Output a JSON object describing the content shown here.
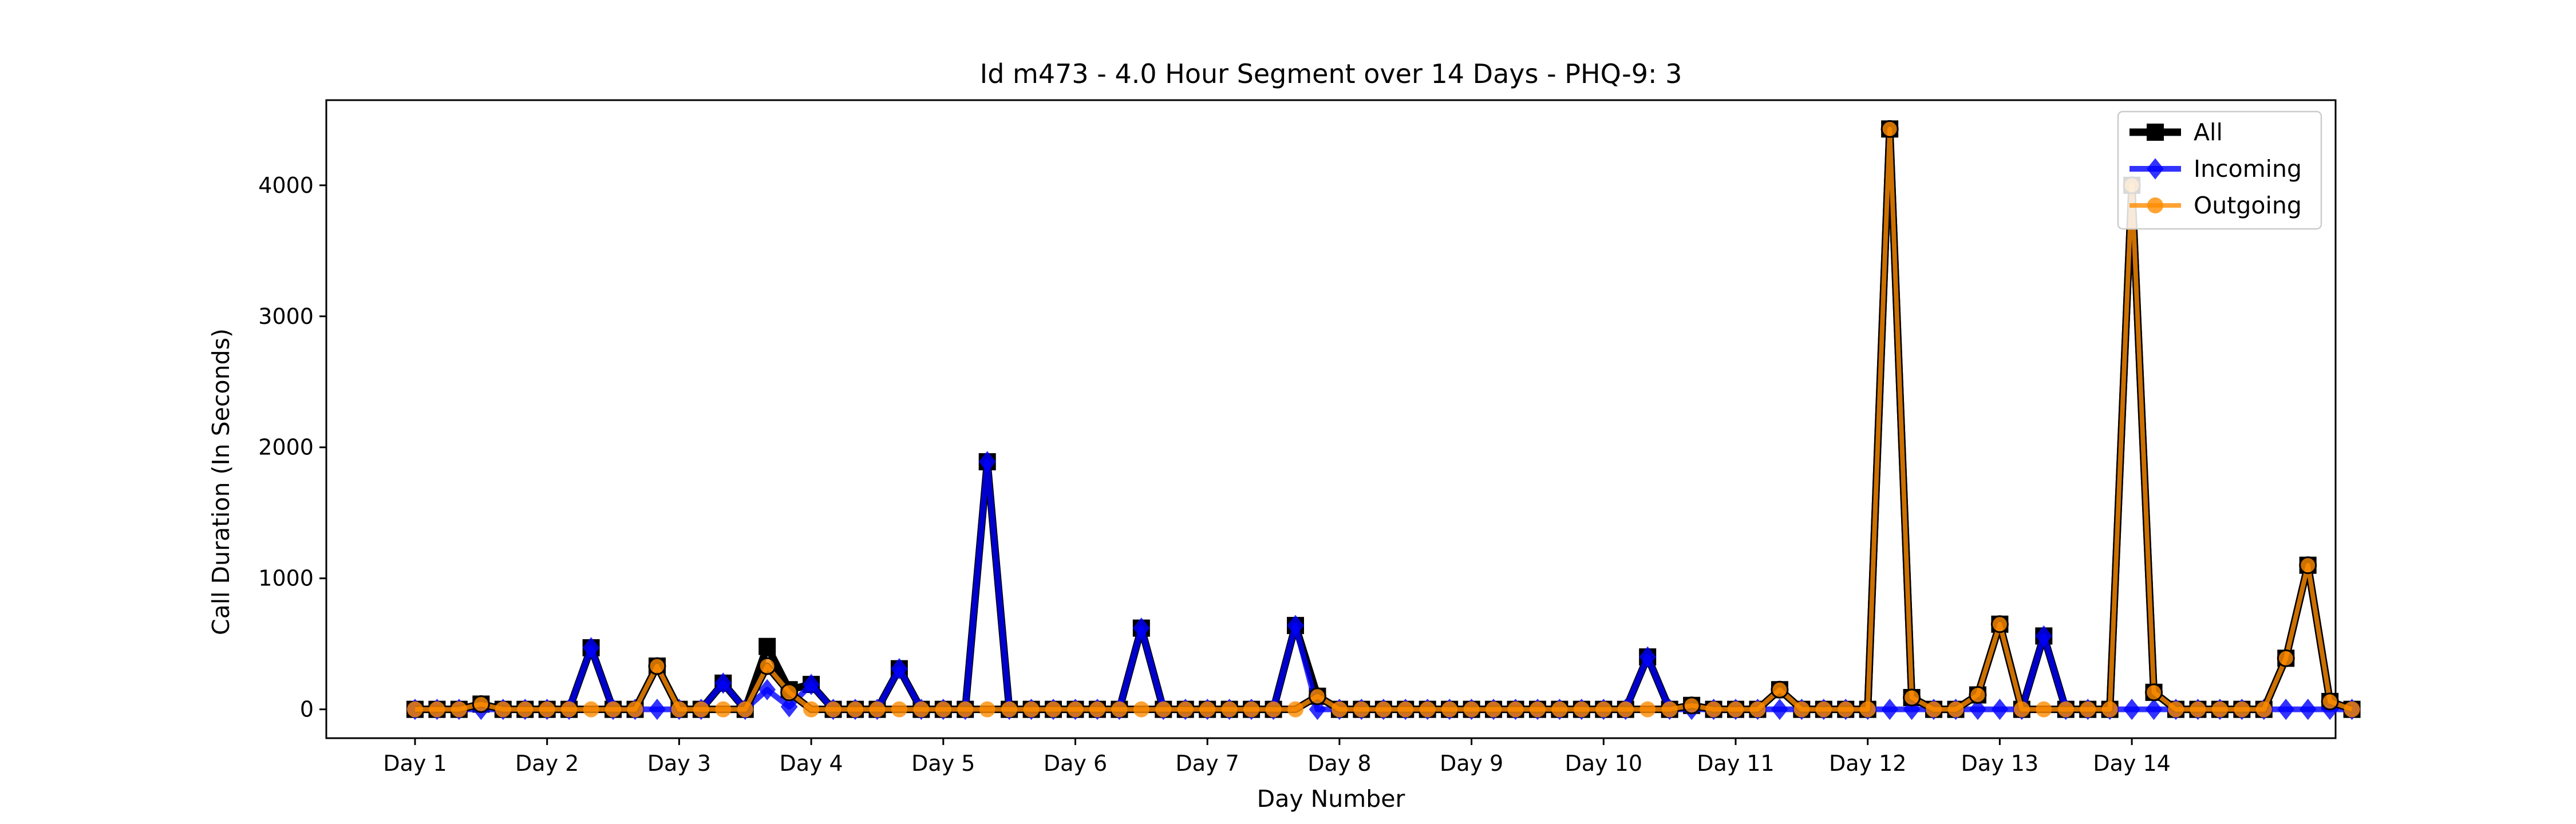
{
  "chart_data": {
    "type": "line",
    "title": "Id m473 - 4.0 Hour Segment over 14 Days - PHQ-9: 3",
    "xlabel": "Day Number",
    "ylabel": "Call Duration (In Seconds)",
    "xtick_labels": [
      "Day 1",
      "Day 2",
      "Day 3",
      "Day 4",
      "Day 5",
      "Day 6",
      "Day 7",
      "Day 8",
      "Day 9",
      "Day 10",
      "Day 11",
      "Day 12",
      "Day 13",
      "Day 14"
    ],
    "yticks": [
      0,
      1000,
      2000,
      3000,
      4000
    ],
    "ylim": [
      -220,
      4650
    ],
    "legend_position": "top-right",
    "segments_per_day": 6,
    "series": [
      {
        "name": "All",
        "color": "#000000",
        "marker": "square",
        "values": [
          0,
          0,
          0,
          40,
          0,
          0,
          0,
          0,
          470,
          0,
          0,
          330,
          0,
          0,
          200,
          0,
          480,
          150,
          190,
          0,
          0,
          0,
          310,
          0,
          0,
          0,
          1890,
          0,
          0,
          0,
          0,
          0,
          0,
          620,
          0,
          0,
          0,
          0,
          0,
          0,
          640,
          100,
          0,
          0,
          0,
          0,
          0,
          0,
          0,
          0,
          0,
          0,
          0,
          0,
          0,
          0,
          400,
          0,
          30,
          0,
          0,
          0,
          150,
          0,
          0,
          0,
          0,
          4430,
          90,
          0,
          0,
          110,
          650,
          0,
          560,
          0,
          0,
          0,
          4000,
          130,
          0,
          0,
          0,
          0,
          0,
          390,
          1100,
          60,
          0
        ]
      },
      {
        "name": "Incoming",
        "color": "#0000ff",
        "marker": "diamond",
        "values": [
          0,
          0,
          0,
          0,
          0,
          0,
          0,
          0,
          470,
          0,
          0,
          0,
          0,
          0,
          200,
          0,
          150,
          20,
          190,
          0,
          0,
          0,
          310,
          0,
          0,
          0,
          1890,
          0,
          0,
          0,
          0,
          0,
          0,
          620,
          0,
          0,
          0,
          0,
          0,
          0,
          640,
          0,
          0,
          0,
          0,
          0,
          0,
          0,
          0,
          0,
          0,
          0,
          0,
          0,
          0,
          0,
          400,
          0,
          0,
          0,
          0,
          0,
          0,
          0,
          0,
          0,
          0,
          0,
          0,
          0,
          0,
          0,
          0,
          0,
          560,
          0,
          0,
          0,
          0,
          0,
          0,
          0,
          0,
          0,
          0,
          0,
          0,
          0,
          0
        ]
      },
      {
        "name": "Outgoing",
        "color": "#ff8c00",
        "marker": "circle",
        "values": [
          0,
          0,
          0,
          40,
          0,
          0,
          0,
          0,
          0,
          0,
          0,
          330,
          0,
          0,
          0,
          0,
          330,
          130,
          0,
          0,
          0,
          0,
          0,
          0,
          0,
          0,
          0,
          0,
          0,
          0,
          0,
          0,
          0,
          0,
          0,
          0,
          0,
          0,
          0,
          0,
          0,
          100,
          0,
          0,
          0,
          0,
          0,
          0,
          0,
          0,
          0,
          0,
          0,
          0,
          0,
          0,
          0,
          0,
          30,
          0,
          0,
          0,
          150,
          0,
          0,
          0,
          0,
          4430,
          90,
          0,
          0,
          110,
          650,
          0,
          0,
          0,
          0,
          0,
          4000,
          130,
          0,
          0,
          0,
          0,
          0,
          390,
          1100,
          60,
          0
        ]
      }
    ]
  }
}
